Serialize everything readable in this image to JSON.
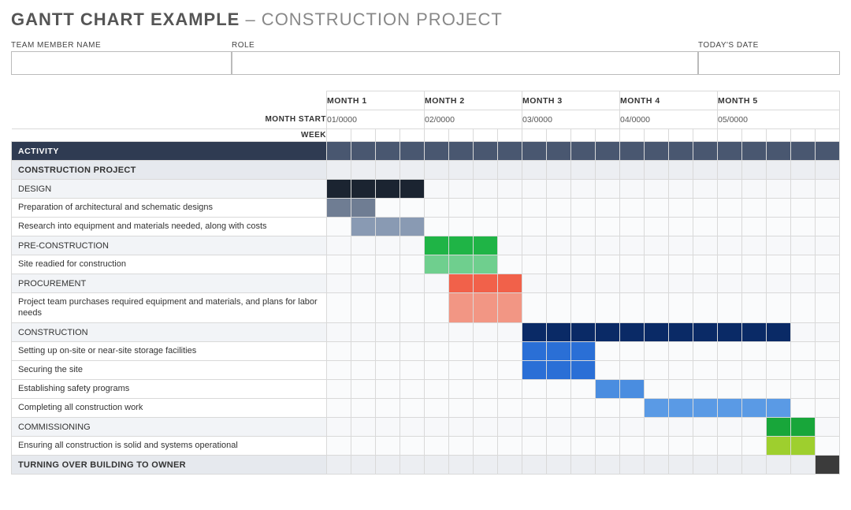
{
  "title_bold": "GANTT CHART EXAMPLE",
  "title_light": "– CONSTRUCTION PROJECT",
  "fields": {
    "team_member_label": "TEAM MEMBER NAME",
    "role_label": "ROLE",
    "date_label": "TODAY'S DATE"
  },
  "labels": {
    "month_start": "MONTH START",
    "week": "WEEK",
    "activity": "ACTIVITY"
  },
  "months": [
    {
      "name": "MONTH 1",
      "start": "01/0000",
      "weeks": 4
    },
    {
      "name": "MONTH 2",
      "start": "02/0000",
      "weeks": 4
    },
    {
      "name": "MONTH 3",
      "start": "03/0000",
      "weeks": 4
    },
    {
      "name": "MONTH 4",
      "start": "04/0000",
      "weeks": 4
    },
    {
      "name": "MONTH 5",
      "start": "05/0000",
      "weeks": 5
    }
  ],
  "total_weeks": 21,
  "colors": {
    "activity_header_bg": "#2f3b52",
    "activity_header_cell": "#495770",
    "section_bg": "#e6e9ee",
    "section_cell": "#eceef2",
    "phase_bg": "#f2f4f7",
    "phase_cell": "#f7f8fa",
    "task_cell": "#fafbfc",
    "border": "#d9d9d9"
  },
  "rows": [
    {
      "type": "section",
      "label": "CONSTRUCTION PROJECT",
      "bars": []
    },
    {
      "type": "phase",
      "label": "DESIGN",
      "bars": [
        {
          "start": 0,
          "span": 4,
          "color": "#1b2431"
        }
      ]
    },
    {
      "type": "task",
      "label": "Preparation of architectural and schematic designs",
      "bars": [
        {
          "start": 0,
          "span": 2,
          "color": "#6f7d93"
        }
      ]
    },
    {
      "type": "task",
      "label": "Research into equipment and materials needed, along with costs",
      "bars": [
        {
          "start": 1,
          "span": 3,
          "color": "#899ab3"
        }
      ]
    },
    {
      "type": "phase",
      "label": "PRE-CONSTRUCTION",
      "bars": [
        {
          "start": 4,
          "span": 3,
          "color": "#1fb446"
        }
      ]
    },
    {
      "type": "task",
      "label": "Site readied for construction",
      "bars": [
        {
          "start": 4,
          "span": 3,
          "color": "#6fcf8e"
        }
      ]
    },
    {
      "type": "phase",
      "label": "PROCUREMENT",
      "bars": [
        {
          "start": 5,
          "span": 3,
          "color": "#f1614a"
        }
      ]
    },
    {
      "type": "task",
      "tall": true,
      "label": "Project team purchases required equipment and materials, and plans for labor needs",
      "bars": [
        {
          "start": 5,
          "span": 3,
          "color": "#f29684"
        }
      ]
    },
    {
      "type": "phase",
      "label": "CONSTRUCTION",
      "bars": [
        {
          "start": 8,
          "span": 11,
          "color": "#0a2a66"
        }
      ]
    },
    {
      "type": "task",
      "label": "Setting up on-site or near-site storage facilities",
      "bars": [
        {
          "start": 8,
          "span": 3,
          "color": "#2a6fd6"
        }
      ]
    },
    {
      "type": "task",
      "label": "Securing the site",
      "bars": [
        {
          "start": 8,
          "span": 3,
          "color": "#2a6fd6"
        }
      ]
    },
    {
      "type": "task",
      "label": "Establishing safety programs",
      "bars": [
        {
          "start": 11,
          "span": 2,
          "color": "#4a8de0"
        }
      ]
    },
    {
      "type": "task",
      "label": "Completing all construction work",
      "bars": [
        {
          "start": 13,
          "span": 6,
          "color": "#5a9ae5"
        }
      ]
    },
    {
      "type": "phase",
      "label": "COMMISSIONING",
      "bars": [
        {
          "start": 18,
          "span": 2,
          "color": "#18a63a"
        }
      ]
    },
    {
      "type": "task",
      "label": "Ensuring all construction is solid and systems operational",
      "bars": [
        {
          "start": 18,
          "span": 2,
          "color": "#9ecf2e"
        }
      ]
    },
    {
      "type": "section",
      "label": "TURNING OVER BUILDING TO OWNER",
      "bars": [
        {
          "start": 20,
          "span": 1,
          "color": "#3b3b3b"
        }
      ]
    }
  ]
}
